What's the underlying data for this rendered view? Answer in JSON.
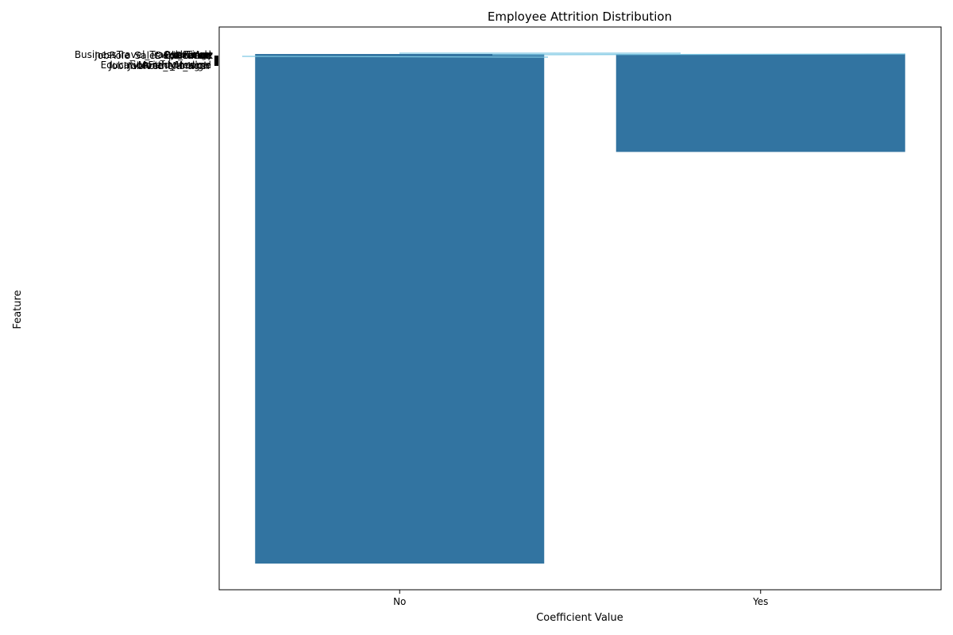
{
  "chart_data": {
    "type": "bar",
    "title": "Employee Attrition Distribution",
    "xlabel": "Coefficient Value",
    "ylabel": "Feature",
    "categories": [
      "No",
      "Yes"
    ],
    "series": [
      {
        "values": [
          1233,
          237
        ]
      }
    ],
    "ylim": [
      0,
      1300
    ],
    "bar_color": "#3274a1",
    "overlay_color": "#7ec8e3",
    "overlapping_labels": {
      "top_group": [
        "BusinessTravel_Travel_Rarely",
        "JobRole_Sales_Executive",
        "OverTime",
        "Department",
        "JobLevel",
        "Gender",
        "Age",
        "Education"
      ],
      "bottom_group": [
        "EducationField_Medical",
        "JobRole_Manager",
        "MonthlyIncome",
        "JobInvolvement_High"
      ]
    }
  }
}
